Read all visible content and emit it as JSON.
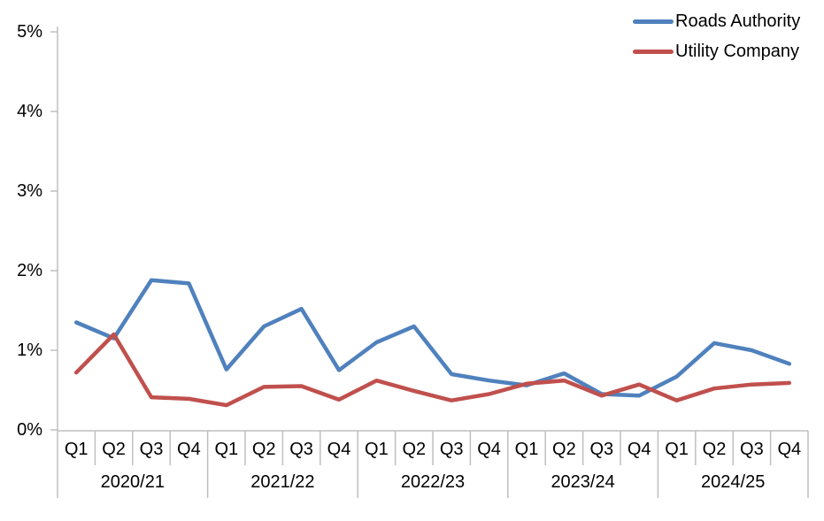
{
  "chart_data": {
    "type": "line",
    "title": "",
    "xlabel": "",
    "ylabel": "",
    "ylim": [
      0,
      5
    ],
    "y_tick_labels": [
      "0%",
      "1%",
      "2%",
      "3%",
      "4%",
      "5%"
    ],
    "grid": false,
    "legend_position": "top-right",
    "axis_color": "#BFBFBF",
    "text_color": "#000000",
    "x_quarter_labels": [
      "Q1",
      "Q2",
      "Q3",
      "Q4",
      "Q1",
      "Q2",
      "Q3",
      "Q4",
      "Q1",
      "Q2",
      "Q3",
      "Q4",
      "Q1",
      "Q2",
      "Q3",
      "Q4",
      "Q1",
      "Q2",
      "Q3",
      "Q4"
    ],
    "year_groups": [
      "2020/21",
      "2021/22",
      "2022/23",
      "2023/24",
      "2024/25"
    ],
    "series": [
      {
        "name": "Roads Authority",
        "color": "#4F81BD",
        "values": [
          1.35,
          1.15,
          1.88,
          1.84,
          0.76,
          1.3,
          1.52,
          0.75,
          1.1,
          1.3,
          0.7,
          0.62,
          0.56,
          0.71,
          0.45,
          0.43,
          0.67,
          1.09,
          1.0,
          0.83
        ]
      },
      {
        "name": "Utility Company",
        "color": "#C0504D",
        "values": [
          0.72,
          1.2,
          0.41,
          0.39,
          0.31,
          0.54,
          0.55,
          0.38,
          0.62,
          0.49,
          0.37,
          0.45,
          0.58,
          0.62,
          0.43,
          0.57,
          0.37,
          0.52,
          0.57,
          0.59
        ]
      }
    ]
  }
}
